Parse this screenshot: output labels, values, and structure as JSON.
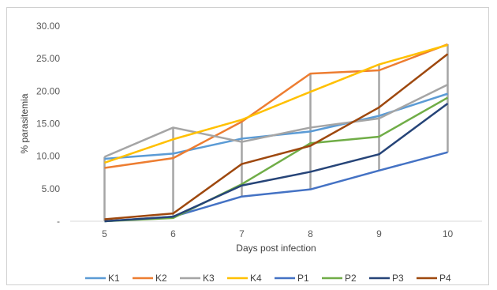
{
  "chart_data": {
    "type": "line",
    "title": "",
    "xlabel": "Days post infection",
    "ylabel": "% parasitemia",
    "categories": [
      "5",
      "6",
      "7",
      "8",
      "9",
      "10"
    ],
    "yticks": [
      "-",
      "5.00",
      "10.00",
      "15.00",
      "20.00",
      "25.00",
      "30.00"
    ],
    "ylim": [
      0,
      30
    ],
    "grid": false,
    "legend_position": "bottom",
    "series": [
      {
        "name": "K1",
        "color": "#5b9bd5",
        "values": [
          9.6,
          10.4,
          12.7,
          13.8,
          16.2,
          19.6
        ]
      },
      {
        "name": "K2",
        "color": "#ed7d31",
        "values": [
          8.2,
          9.7,
          15.3,
          22.7,
          23.2,
          27.2
        ]
      },
      {
        "name": "K3",
        "color": "#a5a5a5",
        "values": [
          9.9,
          14.4,
          12.2,
          14.4,
          15.8,
          21.0
        ]
      },
      {
        "name": "K4",
        "color": "#ffc000",
        "values": [
          9.0,
          12.6,
          15.6,
          19.9,
          24.1,
          27.1
        ]
      },
      {
        "name": "P1",
        "color": "#4472c4",
        "values": [
          0.0,
          0.7,
          3.8,
          4.9,
          7.8,
          10.6
        ]
      },
      {
        "name": "P2",
        "color": "#70ad47",
        "values": [
          0.0,
          0.5,
          5.7,
          12.0,
          13.0,
          19.0
        ]
      },
      {
        "name": "P3",
        "color": "#264478",
        "values": [
          0.0,
          0.7,
          5.5,
          7.6,
          10.3,
          18.1
        ]
      },
      {
        "name": "P4",
        "color": "#9e480e",
        "values": [
          0.3,
          1.2,
          8.8,
          11.6,
          17.5,
          25.7
        ]
      }
    ]
  }
}
